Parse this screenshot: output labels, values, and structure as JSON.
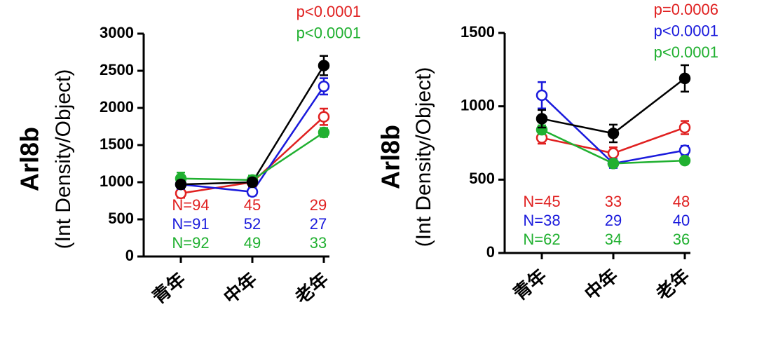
{
  "chart_data": [
    {
      "type": "line",
      "ylabel": "Arl8b",
      "ylabel_note": "(Int Density/Object)",
      "categories": [
        "青年",
        "中年",
        "老年"
      ],
      "ylim": [
        0,
        3000
      ],
      "yticks": [
        0,
        500,
        1000,
        1500,
        2000,
        2500,
        3000
      ],
      "series": [
        {
          "color": "#e02020",
          "marker": "open",
          "values": [
            850,
            1000,
            1880
          ],
          "errors": [
            60,
            60,
            110
          ],
          "n_labels": [
            "N=94",
            "45",
            "29"
          ]
        },
        {
          "color": "#1a1adc",
          "marker": "open",
          "values": [
            970,
            870,
            2290
          ],
          "errors": [
            60,
            50,
            110
          ],
          "n_labels": [
            "N=91",
            "52",
            "27"
          ]
        },
        {
          "color": "#20b030",
          "marker": "filled",
          "values": [
            1050,
            1030,
            1670
          ],
          "errors": [
            80,
            60,
            60
          ],
          "n_labels": [
            "N=92",
            "49",
            "33"
          ]
        },
        {
          "color": "#000000",
          "marker": "filled",
          "values": [
            970,
            1000,
            2570
          ],
          "errors": [
            50,
            50,
            130
          ]
        }
      ],
      "annotations": [
        {
          "text": "p<0.0001",
          "color": "#e02020"
        },
        {
          "text": "p<0.0001",
          "color": "#20b030"
        }
      ]
    },
    {
      "type": "line",
      "ylabel": "Arl8b",
      "ylabel_note": "(Int Density/Object)",
      "categories": [
        "青年",
        "中年",
        "老年"
      ],
      "ylim": [
        0,
        1500
      ],
      "yticks": [
        0,
        500,
        1000,
        1500
      ],
      "series": [
        {
          "color": "#e02020",
          "marker": "open",
          "values": [
            785,
            680,
            855
          ],
          "errors": [
            40,
            40,
            45
          ],
          "n_labels": [
            "N=45",
            "33",
            "48"
          ]
        },
        {
          "color": "#1a1adc",
          "marker": "open",
          "values": [
            1075,
            610,
            700
          ],
          "errors": [
            90,
            30,
            30
          ],
          "n_labels": [
            "N=38",
            "29",
            "40"
          ]
        },
        {
          "color": "#20b030",
          "marker": "filled",
          "values": [
            840,
            610,
            630
          ],
          "errors": [
            30,
            20,
            15
          ],
          "n_labels": [
            "N=62",
            "34",
            "36"
          ]
        },
        {
          "color": "#000000",
          "marker": "filled",
          "values": [
            915,
            815,
            1190
          ],
          "errors": [
            60,
            60,
            90
          ]
        }
      ],
      "annotations": [
        {
          "text": "p=0.0006",
          "color": "#e02020"
        },
        {
          "text": "p<0.0001",
          "color": "#1a1adc"
        },
        {
          "text": "p<0.0001",
          "color": "#20b030"
        }
      ]
    }
  ]
}
